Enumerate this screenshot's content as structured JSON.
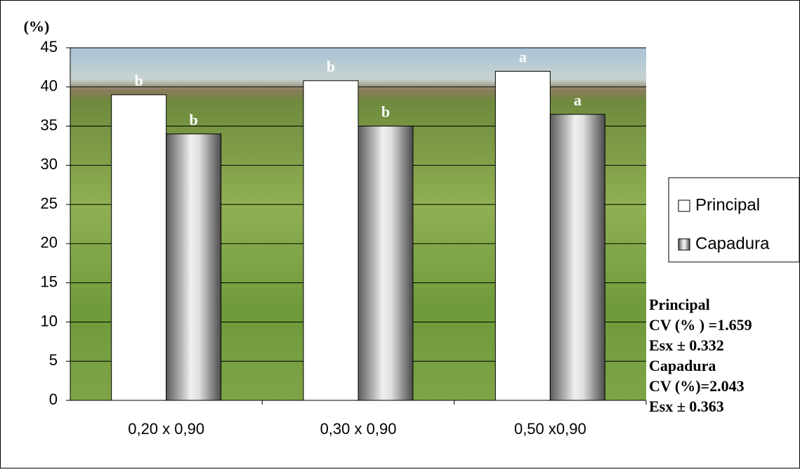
{
  "chart_data": {
    "type": "bar",
    "y_label": "(%)",
    "categories": [
      "0,20 x 0,90",
      "0,30 x 0,90",
      "0,50 x0,90"
    ],
    "series": [
      {
        "name": "Principal",
        "color": "#ffffff",
        "values": [
          39,
          40.8,
          42
        ],
        "letters": [
          "b",
          "b",
          "a"
        ]
      },
      {
        "name": "Capadura",
        "color": "#9a9a9a",
        "values": [
          34,
          35,
          36.5
        ],
        "letters": [
          "b",
          "b",
          "a"
        ]
      }
    ],
    "ylim": [
      0,
      45
    ],
    "yticks": [
      0,
      5,
      10,
      15,
      20,
      25,
      30,
      35,
      40,
      45
    ],
    "grid": true,
    "notes": [
      "Principal",
      "CV (% ) =1.659",
      "Esx ±  0.332",
      "Capadura",
      " CV (%)=2.043",
      "Esx ±  0.363"
    ]
  }
}
